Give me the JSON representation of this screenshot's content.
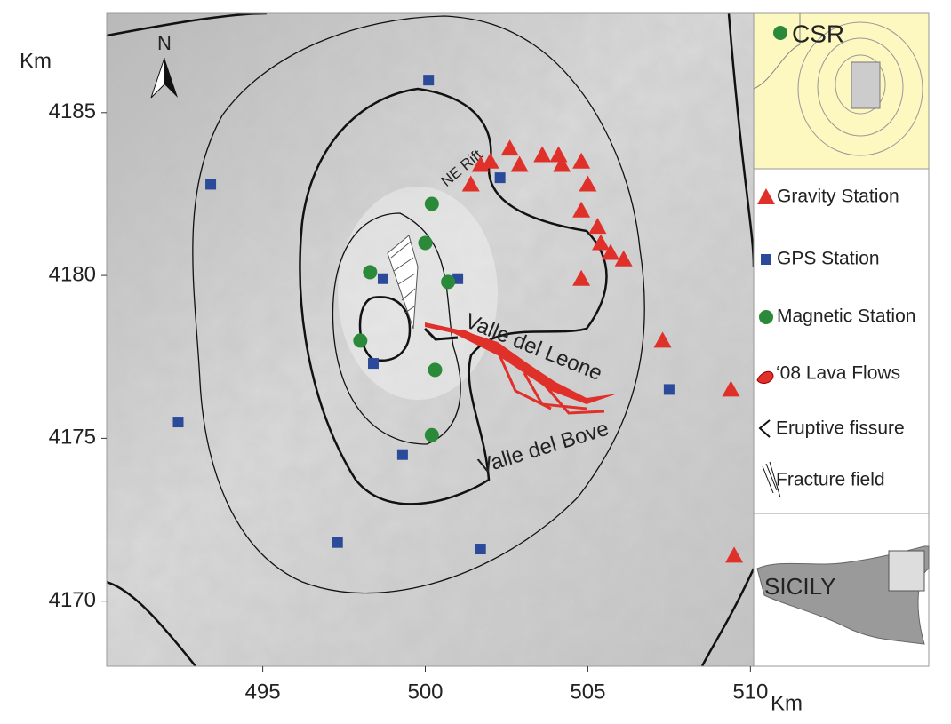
{
  "chart_data": {
    "type": "scatter",
    "xlabel": "Km",
    "ylabel": "Km",
    "xlim": [
      490.2,
      510.1
    ],
    "ylim": [
      4168,
      4188.05
    ],
    "xticks": [
      495,
      500,
      505,
      510
    ],
    "yticks": [
      4170,
      4175,
      4180,
      4185
    ],
    "series": [
      {
        "name": "Gravity Station",
        "color": "#e0302a",
        "marker": "triangle",
        "x": [
          501.4,
          501.7,
          502.0,
          502.6,
          502.9,
          503.6,
          504.1,
          504.2,
          504.8,
          505.0,
          504.8,
          505.3,
          505.4,
          505.7,
          506.1,
          504.8,
          507.3,
          509.4,
          509.5
        ],
        "y": [
          4182.8,
          4183.4,
          4183.5,
          4183.9,
          4183.4,
          4183.7,
          4183.7,
          4183.4,
          4183.5,
          4182.8,
          4182.0,
          4181.5,
          4181.0,
          4180.7,
          4180.5,
          4179.9,
          4178.0,
          4176.5,
          4171.4
        ]
      },
      {
        "name": "GPS Station",
        "color": "#2b4a9a",
        "marker": "square",
        "x": [
          500.1,
          493.4,
          502.3,
          498.7,
          501.0,
          498.4,
          507.5,
          492.4,
          499.3,
          497.3,
          501.7
        ],
        "y": [
          4186.0,
          4182.8,
          4183.0,
          4179.9,
          4179.9,
          4177.3,
          4176.5,
          4175.5,
          4174.5,
          4171.8,
          4171.6
        ]
      },
      {
        "name": "Magnetic Station",
        "color": "#2a8a3a",
        "marker": "circle",
        "x": [
          500.2,
          500.0,
          498.3,
          500.7,
          498.0,
          500.3,
          500.2
        ],
        "y": [
          4182.2,
          4181.0,
          4180.1,
          4179.8,
          4178.0,
          4177.1,
          4175.1
        ]
      }
    ],
    "legend_extra": [
      "‘08 Lava Flows",
      "Eruptive fissure",
      "Fracture field"
    ],
    "annotations": {
      "north": "N",
      "rift": "NE Rift",
      "leone": "Valle del Leone",
      "bove": "Valle del Bove",
      "station": "CSR",
      "island": "SICILY"
    }
  }
}
